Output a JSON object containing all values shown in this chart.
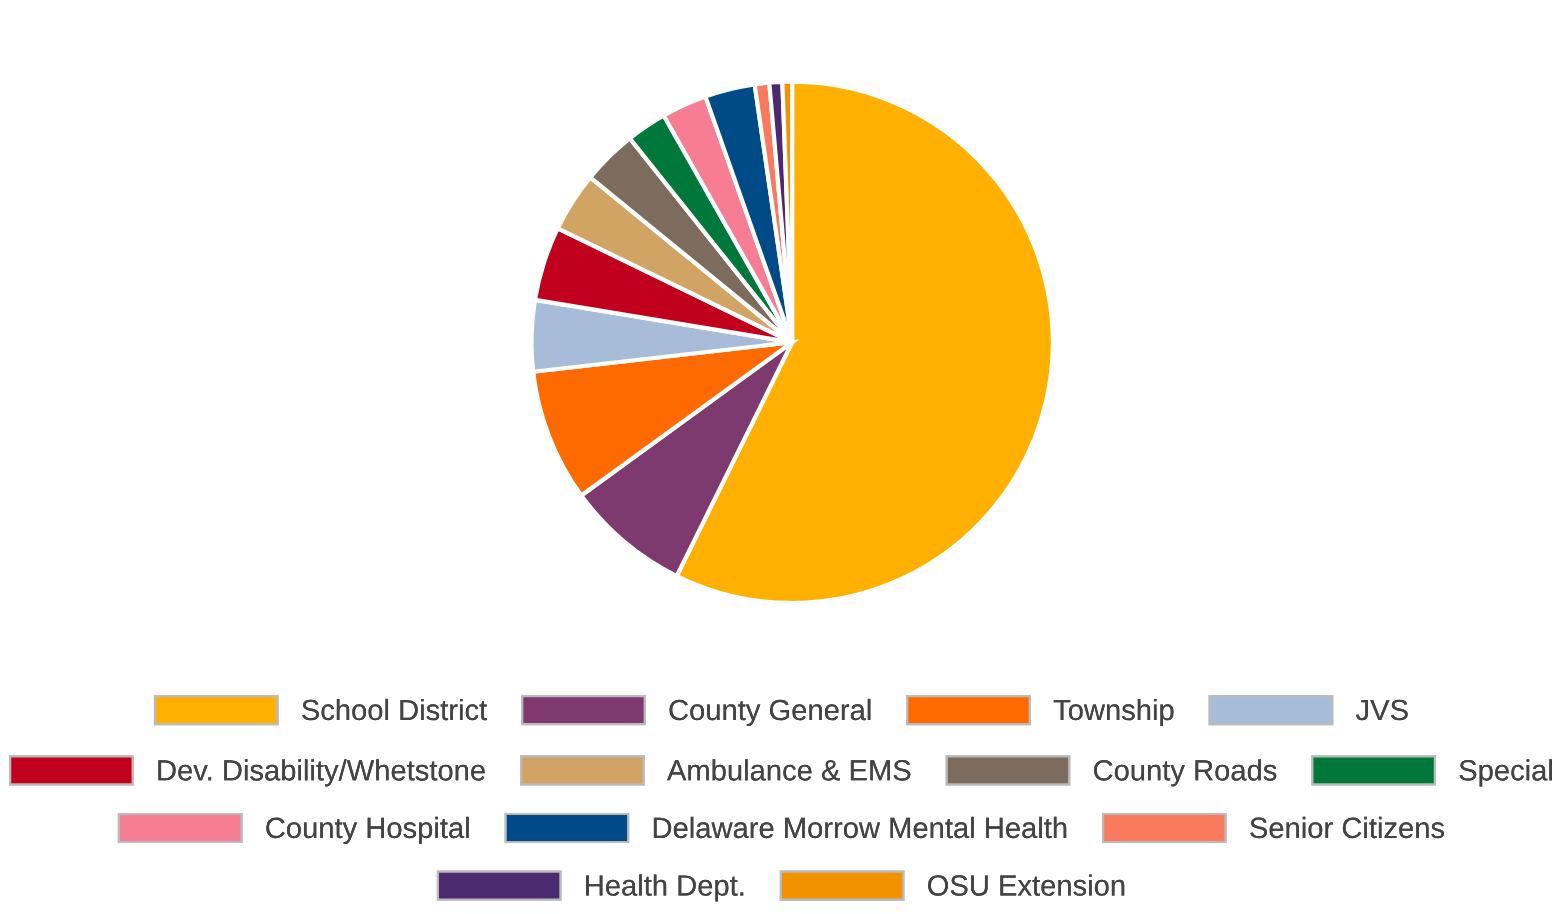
{
  "chart_data": {
    "type": "pie",
    "legend": "bottom",
    "categories": [
      "School District",
      "County General",
      "Township",
      "JVS",
      "Dev. Disability/Whetstone",
      "Ambulance & EMS",
      "County Roads",
      "Special",
      "County Hospital",
      "Delaware Morrow Mental Health",
      "Senior Citizens",
      "Health Dept.",
      "OSU Extension"
    ],
    "values": [
      57.3,
      7.7,
      8.2,
      4.4,
      4.6,
      3.7,
      3.4,
      2.5,
      2.8,
      3.1,
      0.9,
      0.8,
      0.6
    ],
    "colors": [
      "#ffb000",
      "#7e3a6e",
      "#ff6a00",
      "#a7bcd8",
      "#c0001d",
      "#d2a464",
      "#7d6b5d",
      "#00783a",
      "#f67d94",
      "#004b87",
      "#fa7a60",
      "#4b2a70",
      "#f39200"
    ]
  }
}
